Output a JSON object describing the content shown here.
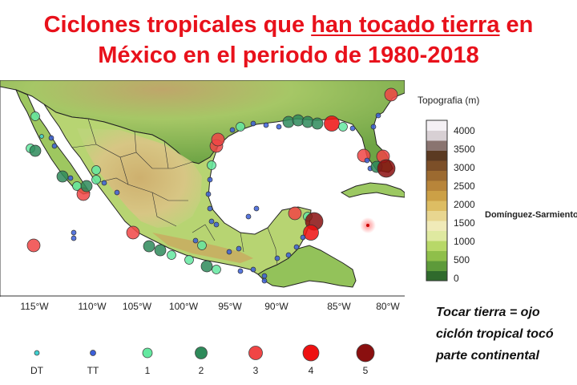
{
  "title": {
    "line1_pre": "Ciclones tropicales que ",
    "line1_underlined": "han tocado tierra",
    "line1_post": " en",
    "line2": "México en el periodo de 1980-2018"
  },
  "map": {
    "longitude_labels": [
      "115°W",
      "110°W",
      "105°W",
      "100°W",
      "95°W",
      "90°W",
      "85°W",
      "80°W"
    ],
    "colors": {
      "ocean": "#ffffff",
      "coast": "#222222"
    }
  },
  "colorbar": {
    "title": "Topografia (m)",
    "tick_labels": [
      "4000",
      "3500",
      "3000",
      "2500",
      "2000",
      "1500",
      "1000",
      "500",
      "0"
    ],
    "colors": [
      "#2f6a2c",
      "#5d9a3a",
      "#8fbf4a",
      "#b8d868",
      "#dfe9a0",
      "#f0eab8",
      "#e8d690",
      "#ddbd63",
      "#cca046",
      "#b8853a",
      "#9c6a30",
      "#7c4f28",
      "#5b3a22",
      "#8a7470",
      "#d8d0d4",
      "#f4f0f4"
    ]
  },
  "credit": "Domínguez-Sarmiento",
  "note": {
    "line1": "Tocar  tierra  =  ojo",
    "line2": "ciclón tropical tocó",
    "line3": "parte continental"
  },
  "legend": {
    "items": [
      {
        "label": "DT",
        "color": "#3fd1d1"
      },
      {
        "label": "TT",
        "color": "#3b5fd9"
      },
      {
        "label": "1",
        "color": "#64e8a0"
      },
      {
        "label": "2",
        "color": "#2e8a5a"
      },
      {
        "label": "3",
        "color": "#f04545"
      },
      {
        "label": "4",
        "color": "#ee1111"
      },
      {
        "label": "5",
        "color": "#8a0f0f"
      }
    ]
  }
}
